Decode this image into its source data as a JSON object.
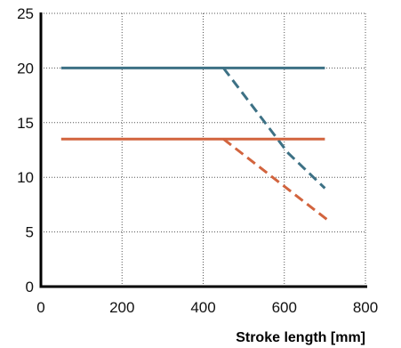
{
  "chart_data": {
    "type": "line",
    "xlabel": "Stroke length [mm]",
    "ylabel": "",
    "xlim": [
      0,
      800
    ],
    "ylim": [
      0,
      25
    ],
    "xticks": [
      0,
      200,
      400,
      600,
      800
    ],
    "yticks": [
      0,
      5,
      10,
      15,
      20,
      25
    ],
    "grid": true,
    "legend": "none",
    "series": [
      {
        "color": "#3d7185",
        "dash": false,
        "x": [
          50,
          700
        ],
        "y": [
          20,
          20
        ]
      },
      {
        "color": "#3d7185",
        "dash": true,
        "x": [
          450,
          610,
          700
        ],
        "y": [
          20,
          12.2,
          9
        ]
      },
      {
        "color": "#d2643e",
        "dash": false,
        "x": [
          50,
          700
        ],
        "y": [
          13.5,
          13.5
        ]
      },
      {
        "color": "#d2643e",
        "dash": true,
        "x": [
          450,
          710
        ],
        "y": [
          13.5,
          6
        ]
      }
    ]
  }
}
